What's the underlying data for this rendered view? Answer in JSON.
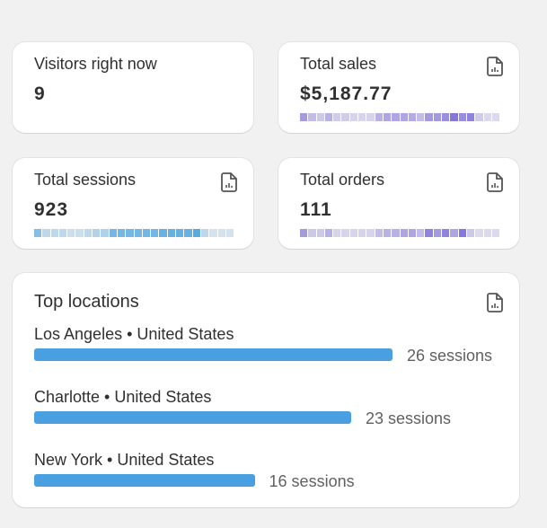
{
  "visitors": {
    "label": "Visitors right now",
    "value": "9"
  },
  "sales": {
    "label": "Total sales",
    "value": "$5,187.77",
    "icon": "report-icon",
    "color": "#7b6cd9",
    "strip": [
      0.6,
      0.3,
      0.2,
      0.4,
      0.15,
      0.15,
      0.1,
      0.1,
      0.1,
      0.4,
      0.5,
      0.5,
      0.5,
      0.45,
      0.3,
      0.6,
      0.6,
      0.7,
      0.9,
      0.7,
      0.8,
      0.15,
      0.05,
      0.05
    ]
  },
  "sessions": {
    "label": "Total sessions",
    "value": "923",
    "icon": "report-icon",
    "color": "#4aa3e0",
    "strip": [
      0.6,
      0.2,
      0.2,
      0.2,
      0.1,
      0.1,
      0.2,
      0.3,
      0.3,
      0.7,
      0.7,
      0.7,
      0.7,
      0.7,
      0.7,
      0.8,
      0.8,
      0.8,
      0.8,
      0.9,
      0.2,
      0.05,
      0.05,
      0.05
    ]
  },
  "orders": {
    "label": "Total orders",
    "value": "111",
    "icon": "report-icon",
    "color": "#7b6cd9",
    "strip": [
      0.6,
      0.2,
      0.2,
      0.4,
      0.1,
      0.1,
      0.1,
      0.1,
      0.1,
      0.3,
      0.4,
      0.4,
      0.5,
      0.5,
      0.3,
      0.8,
      0.6,
      0.8,
      0.5,
      0.9,
      0.2,
      0.05,
      0.05,
      0.05
    ]
  },
  "top_locations": {
    "title": "Top locations",
    "icon": "report-icon",
    "max": 26,
    "items": [
      {
        "name": "Los Angeles • United States",
        "count": 26,
        "label": "26 sessions"
      },
      {
        "name": "Charlotte • United States",
        "count": 23,
        "label": "23 sessions"
      },
      {
        "name": "New York • United States",
        "count": 16,
        "label": "16 sessions"
      }
    ]
  }
}
